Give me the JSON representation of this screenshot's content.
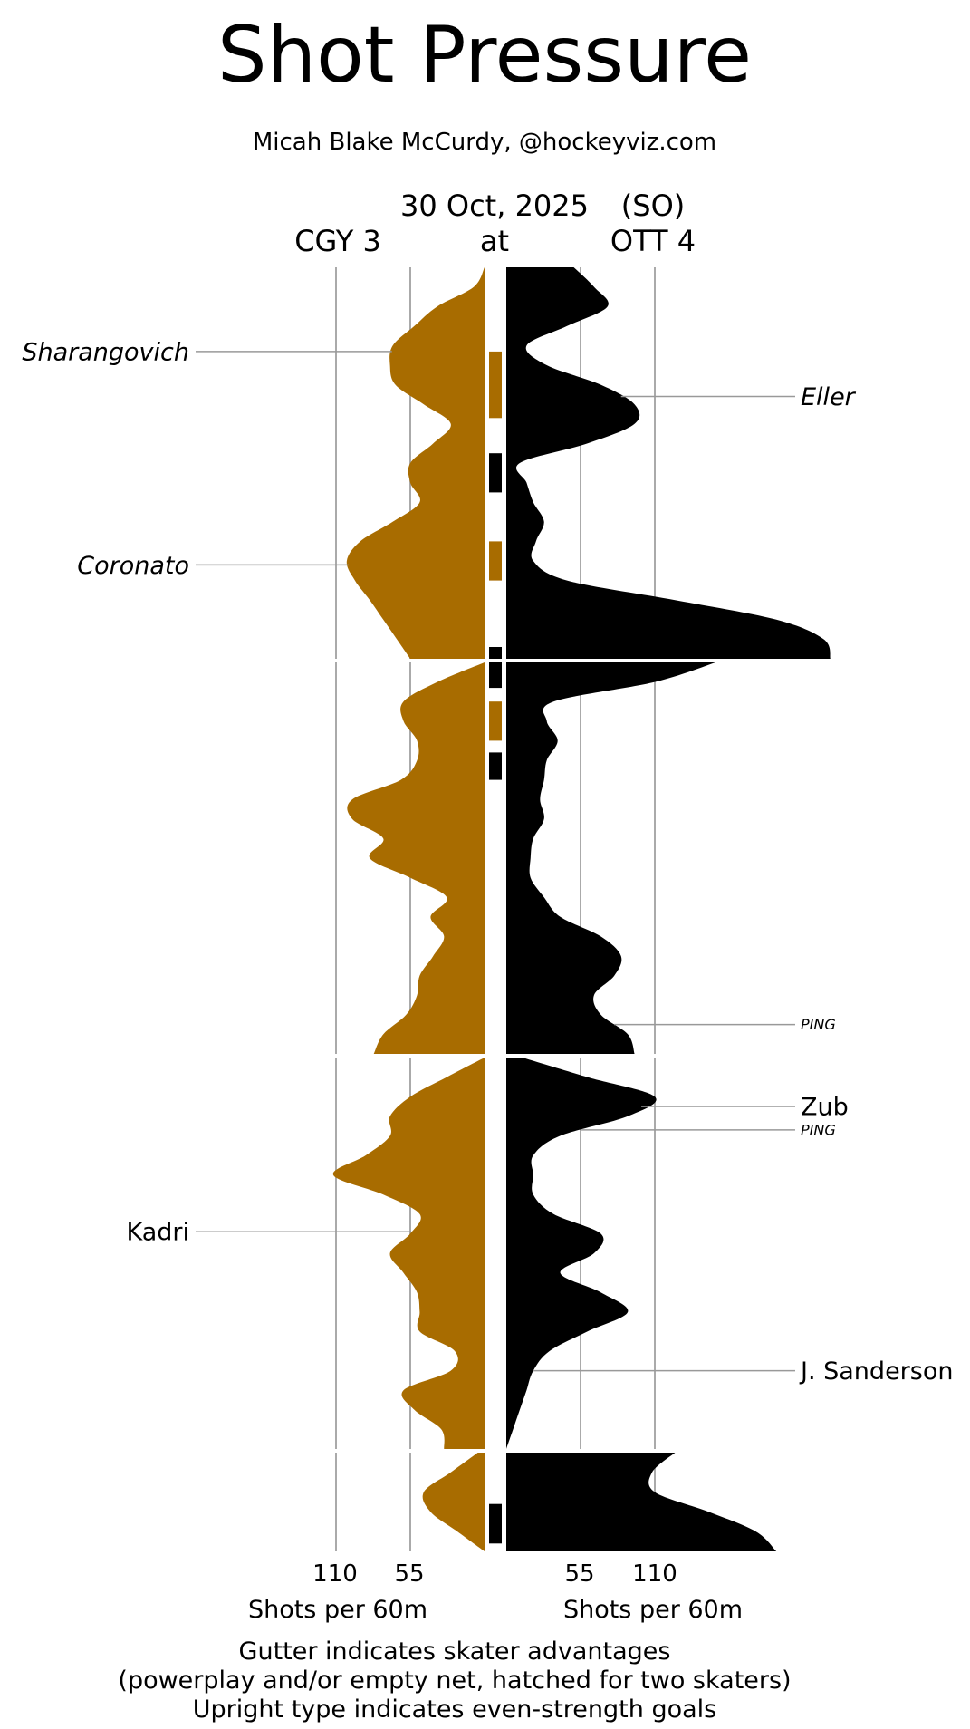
{
  "title": "Shot Pressure",
  "subtitle": "Micah Blake McCurdy, @hockeyviz.com",
  "game": {
    "date": "30 Oct, 2025",
    "result_tag": "(SO)",
    "away_label": "CGY 3",
    "connector": "at",
    "home_label": "OTT 4"
  },
  "colors": {
    "away": "#a86c00",
    "home": "#000000",
    "grid": "#aaaaaa",
    "label_line": "#999999"
  },
  "axis": {
    "left_ticks": [
      "110",
      "55"
    ],
    "right_ticks": [
      "55",
      "110"
    ],
    "left_label": "Shots per 60m",
    "right_label": "Shots per 60m"
  },
  "footnote": [
    "Gutter indicates skater advantages",
    "(powerplay and/or empty net, hatched for two skaters)",
    "Upright type indicates even-strength goals"
  ],
  "player_labels": [
    {
      "name": "Sharangovich",
      "side": "away",
      "italic": true,
      "small": false,
      "period": 1,
      "minute": 4.3
    },
    {
      "name": "Coronato",
      "side": "away",
      "italic": true,
      "small": false,
      "period": 1,
      "minute": 15.2
    },
    {
      "name": "Kadri",
      "side": "away",
      "italic": false,
      "small": false,
      "period": 3,
      "minute": 8.9
    },
    {
      "name": "Eller",
      "side": "home",
      "italic": true,
      "small": false,
      "period": 1,
      "minute": 6.6
    },
    {
      "name": "PING",
      "side": "home",
      "italic": true,
      "small": true,
      "period": 2,
      "minute": 18.5
    },
    {
      "name": "Zub",
      "side": "home",
      "italic": false,
      "small": false,
      "period": 3,
      "minute": 2.5
    },
    {
      "name": "PING",
      "side": "home",
      "italic": true,
      "small": true,
      "period": 3,
      "minute": 3.7
    },
    {
      "name": "J. Sanderson",
      "side": "home",
      "italic": false,
      "small": false,
      "period": 3,
      "minute": 16.0
    }
  ],
  "chart_data": {
    "type": "area",
    "title": "Shot Pressure",
    "y_unit": "Shots per 60m",
    "x_axis": "game time, periods 1–3 then overtime (top to bottom)",
    "grid": true,
    "tick_values": [
      55,
      110
    ],
    "periods": [
      {
        "period": 1,
        "minutes": [
          0,
          1,
          2,
          3,
          4,
          5,
          6,
          7,
          8,
          9,
          10,
          11,
          12,
          13,
          14,
          15,
          16,
          17,
          18,
          19,
          20
        ],
        "series": [
          {
            "team": "CGY",
            "values": [
              0,
              8,
              35,
              52,
              68,
              70,
              66,
              45,
              25,
              38,
              55,
              55,
              48,
              68,
              92,
              102,
              96,
              85,
              75,
              65,
              55
            ]
          },
          {
            "team": "OTT",
            "values": [
              50,
              65,
              75,
              45,
              15,
              30,
              70,
              95,
              95,
              60,
              10,
              15,
              20,
              28,
              22,
              20,
              45,
              125,
              200,
              235,
              240
            ]
          }
        ],
        "gutter": [
          {
            "team": "CGY",
            "start": 4.3,
            "end": 7.7
          },
          {
            "team": "OTT",
            "start": 9.5,
            "end": 11.5
          },
          {
            "team": "CGY",
            "start": 14.0,
            "end": 16.0
          },
          {
            "team": "OTT",
            "start": 19.4,
            "end": 20.0
          }
        ]
      },
      {
        "period": 2,
        "minutes": [
          0,
          1,
          2,
          3,
          4,
          5,
          6,
          7,
          8,
          9,
          10,
          11,
          12,
          13,
          14,
          15,
          16,
          17,
          18,
          19,
          20
        ],
        "series": [
          {
            "team": "CGY",
            "values": [
              0,
              35,
              60,
              60,
              50,
              50,
              62,
              98,
              98,
              75,
              85,
              55,
              28,
              40,
              30,
              38,
              48,
              50,
              58,
              75,
              82
            ]
          },
          {
            "team": "OTT",
            "values": [
              155,
              110,
              35,
              30,
              38,
              30,
              28,
              25,
              28,
              20,
              18,
              18,
              28,
              40,
              70,
              85,
              80,
              65,
              70,
              90,
              95
            ]
          }
        ],
        "gutter": [
          {
            "team": "OTT",
            "start": 0.0,
            "end": 1.3
          },
          {
            "team": "CGY",
            "start": 2.0,
            "end": 4.0
          },
          {
            "team": "OTT",
            "start": 4.6,
            "end": 6.0
          }
        ]
      },
      {
        "period": 3,
        "minutes": [
          0,
          1,
          2,
          3,
          4,
          5,
          6,
          7,
          8,
          9,
          10,
          11,
          12,
          13,
          14,
          15,
          16,
          17,
          18,
          19,
          20
        ],
        "series": [
          {
            "team": "CGY",
            "values": [
              0,
              28,
              55,
              70,
              70,
              88,
              112,
              75,
              48,
              55,
              70,
              60,
              50,
              48,
              48,
              22,
              25,
              60,
              52,
              32,
              30
            ]
          },
          {
            "team": "OTT",
            "values": [
              12,
              60,
              110,
              90,
              40,
              20,
              20,
              20,
              35,
              70,
              65,
              40,
              70,
              90,
              60,
              32,
              20,
              15,
              10,
              5,
              0
            ]
          }
        ],
        "gutter": []
      },
      {
        "period": "OT",
        "minutes": [
          0,
          1,
          2,
          3,
          4,
          5
        ],
        "series": [
          {
            "team": "CGY",
            "values": [
              5,
              25,
              45,
              40,
              20,
              0
            ]
          },
          {
            "team": "OTT",
            "values": [
              125,
              108,
              110,
              150,
              185,
              200
            ]
          }
        ],
        "gutter": [
          {
            "team": "OTT",
            "start": 2.6,
            "end": 4.6
          }
        ]
      }
    ]
  }
}
